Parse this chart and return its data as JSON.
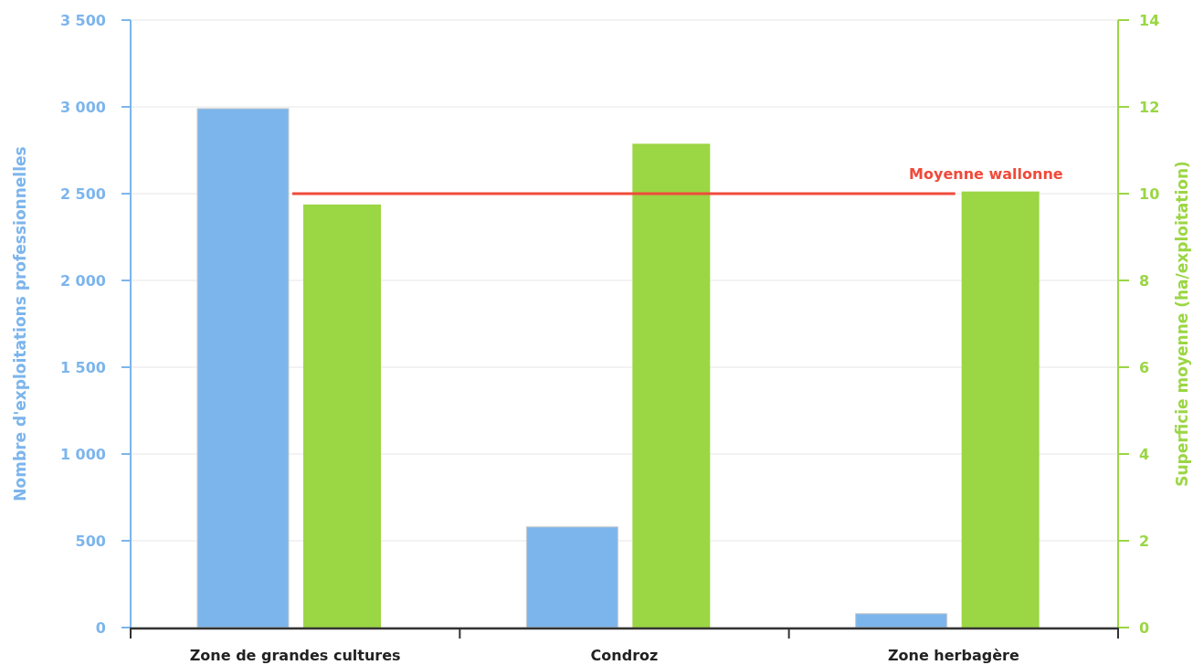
{
  "chart_data": {
    "type": "bar",
    "categories": [
      "Zone de grandes cultures",
      "Condroz",
      "Zone herbagère"
    ],
    "series": [
      {
        "color": "#7cb5ec",
        "values": [
          2990,
          580,
          80
        ]
      },
      {
        "color": "#9bd644",
        "values": [
          9.75,
          11.15,
          10.05
        ],
        "axis": "y2"
      }
    ],
    "ylabel": "Nombre d'exploitations professionnelles",
    "y2label": "Superficie moyenne (ha/exploitation)",
    "ylim": [
      0,
      3500
    ],
    "yticks": [
      {
        "value": 0,
        "label": "0"
      },
      {
        "value": 500,
        "label": "500"
      },
      {
        "value": 1000,
        "label": "1 000"
      },
      {
        "value": 1500,
        "label": "1 500"
      },
      {
        "value": 2000,
        "label": "2 000"
      },
      {
        "value": 2500,
        "label": "2 500"
      },
      {
        "value": 3000,
        "label": "3 000"
      },
      {
        "value": 3500,
        "label": "3 500"
      }
    ],
    "y2lim": [
      0,
      14
    ],
    "y2ticks": [
      0,
      2,
      4,
      6,
      8,
      10,
      12,
      14
    ],
    "grid": "y",
    "ref_lines": [
      {
        "axis": "y2",
        "value": 10,
        "label": "Moyenne wallonne",
        "color": "#f04a3a"
      }
    ]
  }
}
